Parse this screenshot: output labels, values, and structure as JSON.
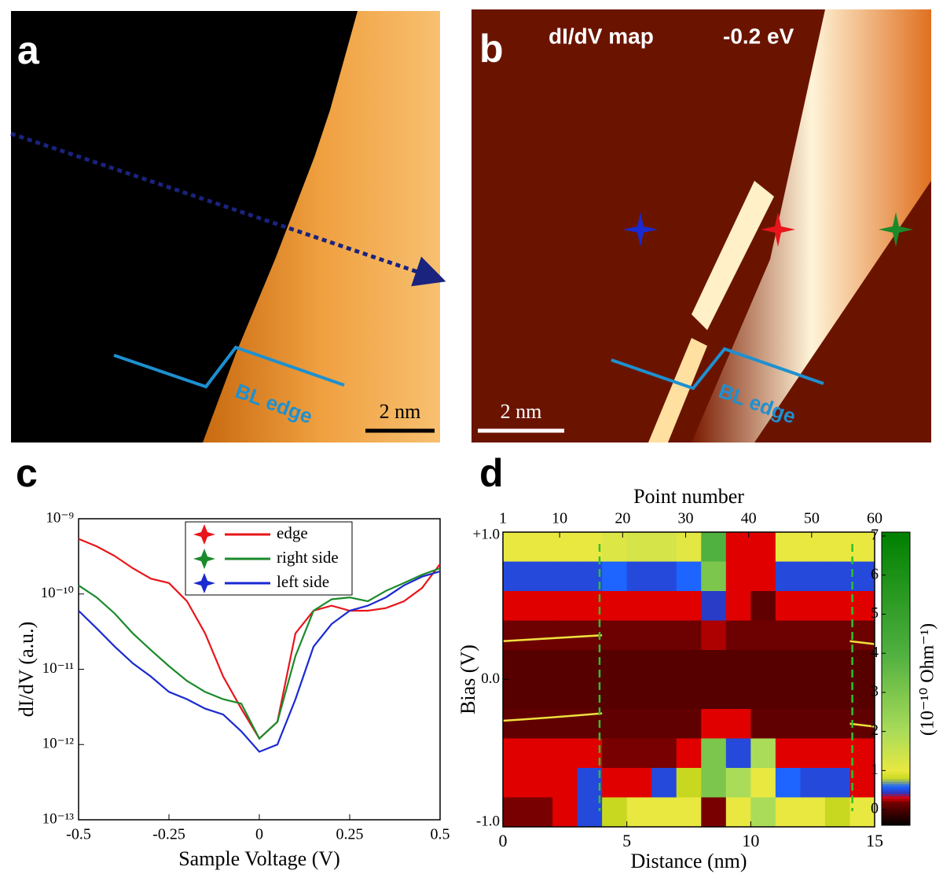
{
  "images": [
    {
      "panel": "a",
      "edge_label": "BL edge",
      "scale_label": "2 nm"
    },
    {
      "panel": "b",
      "title": "dI/dV map",
      "energy": "-0.2 eV",
      "edge_label": "BL edge",
      "scale_label": "2 nm"
    }
  ],
  "chart_data": [
    {
      "type": "line",
      "panel": "c",
      "xlabel": "Sample Voltage (V)",
      "ylabel": "dI/dV (a.u.)",
      "log_y": true,
      "x": [
        -0.5,
        -0.45,
        -0.4,
        -0.35,
        -0.3,
        -0.25,
        -0.2,
        -0.15,
        -0.1,
        -0.05,
        0,
        0.05,
        0.1,
        0.15,
        0.2,
        0.25,
        0.3,
        0.35,
        0.4,
        0.45,
        0.5
      ],
      "xlim": [
        -0.5,
        0.5
      ],
      "xticks": [
        -0.5,
        -0.25,
        0,
        0.25,
        0.5
      ],
      "ylim": [
        1e-13,
        1e-09
      ],
      "yticks": [
        {
          "value": 1e-13,
          "label": "10⁻¹³"
        },
        {
          "value": 1e-12,
          "label": "10⁻¹²"
        },
        {
          "value": 1e-11,
          "label": "10⁻¹¹"
        },
        {
          "value": 1e-10,
          "label": "10⁻¹⁰"
        },
        {
          "value": 1e-09,
          "label": "10⁻⁹"
        }
      ],
      "legend": "top",
      "series": [
        {
          "name": "edge",
          "color": "#e8151b",
          "values": [
            5.4e-10,
            4.3e-10,
            3.2e-10,
            2.2e-10,
            1.6e-10,
            1.4e-10,
            8e-11,
            3e-11,
            8e-12,
            3e-12,
            1.2e-12,
            2e-12,
            3e-11,
            6e-11,
            7e-11,
            6e-11,
            6e-11,
            6.5e-11,
            8e-11,
            1.2e-10,
            2.5e-10
          ]
        },
        {
          "name": "right side",
          "color": "#1a8a2a",
          "values": [
            1.3e-10,
            9e-11,
            5.5e-11,
            3e-11,
            1.8e-11,
            1.1e-11,
            7e-12,
            5e-12,
            4e-12,
            3.5e-12,
            1.2e-12,
            2e-12,
            1.5e-11,
            6e-11,
            8.5e-11,
            9e-11,
            8e-11,
            1.1e-10,
            1.4e-10,
            1.8e-10,
            2.2e-10
          ]
        },
        {
          "name": "left side",
          "color": "#1a2ad0",
          "values": [
            6e-11,
            3.5e-11,
            2e-11,
            1.2e-11,
            8e-12,
            5e-12,
            4e-12,
            3e-12,
            2.5e-12,
            1.5e-12,
            8e-13,
            1e-12,
            4e-12,
            2e-11,
            4e-11,
            6e-11,
            7e-11,
            9e-11,
            1.3e-10,
            1.7e-10,
            2e-10
          ]
        }
      ]
    },
    {
      "type": "heatmap",
      "panel": "d",
      "xlabel": "Distance (nm)",
      "ylabel": "Bias (V)",
      "x2label": "Point number",
      "colorbar_label": "(10⁻¹⁰ Ohm⁻¹)",
      "x": [
        0.5,
        1.5,
        2.5,
        3.5,
        4.5,
        5.5,
        6.5,
        7.5,
        8.5,
        9.5,
        10.5,
        11.5,
        12.5,
        13.5,
        14.5
      ],
      "y": [
        0.9,
        0.7,
        0.5,
        0.3,
        0.1,
        -0.1,
        -0.3,
        -0.5,
        -0.7,
        -0.9
      ],
      "z": [
        [
          1,
          1,
          1,
          1,
          1.2,
          1.3,
          1.3,
          1.1,
          4,
          0.3,
          0.3,
          1,
          1,
          1,
          1
        ],
        [
          0.5,
          0.5,
          0.5,
          0.5,
          0.6,
          0.5,
          0.5,
          0.6,
          3,
          0.3,
          0.3,
          0.5,
          0.5,
          0.5,
          0.5
        ],
        [
          0.3,
          0.3,
          0.3,
          0.3,
          0.3,
          0.3,
          0.3,
          0.3,
          0.45,
          0.3,
          0.1,
          0.3,
          0.3,
          0.3,
          0.3
        ],
        [
          0.15,
          0.15,
          0.15,
          0.15,
          0.15,
          0.15,
          0.15,
          0.15,
          0.25,
          0.15,
          0.15,
          0.15,
          0.15,
          0.15,
          0.15
        ],
        [
          0.05,
          0.05,
          0.05,
          0.05,
          0.05,
          0.05,
          0.05,
          0.05,
          0.05,
          0.05,
          0.05,
          0.05,
          0.05,
          0.05,
          0.05
        ],
        [
          0.05,
          0.05,
          0.05,
          0.05,
          0.05,
          0.05,
          0.05,
          0.05,
          0.05,
          0.05,
          0.05,
          0.05,
          0.05,
          0.05,
          0.05
        ],
        [
          0.1,
          0.1,
          0.1,
          0.1,
          0.1,
          0.1,
          0.1,
          0.1,
          0.3,
          0.3,
          0.1,
          0.1,
          0.1,
          0.1,
          0.1
        ],
        [
          0.3,
          0.3,
          0.3,
          0.3,
          0.2,
          0.2,
          0.2,
          0.3,
          3,
          0.5,
          2,
          0.3,
          0.3,
          0.3,
          0.3
        ],
        [
          0.3,
          0.3,
          0.3,
          0.5,
          0.3,
          0.3,
          0.5,
          0.8,
          3,
          2,
          1,
          0.6,
          0.5,
          0.5,
          0.3
        ],
        [
          0.2,
          0.2,
          0.3,
          0.5,
          0.8,
          1,
          1,
          1,
          0.2,
          1,
          2,
          1,
          1,
          0.8,
          1
        ]
      ],
      "xlim": [
        0,
        15
      ],
      "xticks": [
        0,
        5,
        10,
        15
      ],
      "ylim": [
        -1,
        1
      ],
      "yticks": [
        {
          "value": -1,
          "label": "-1.0"
        },
        {
          "value": 0,
          "label": "0.0"
        },
        {
          "value": 1,
          "label": "+1.0"
        }
      ],
      "x2lim": [
        1,
        60
      ],
      "x2ticks": [
        1,
        10,
        20,
        30,
        40,
        50,
        60
      ],
      "zlim": [
        -0.4,
        7.1
      ],
      "zticks": [
        0,
        1,
        2,
        3,
        4,
        5,
        6,
        7
      ]
    }
  ]
}
